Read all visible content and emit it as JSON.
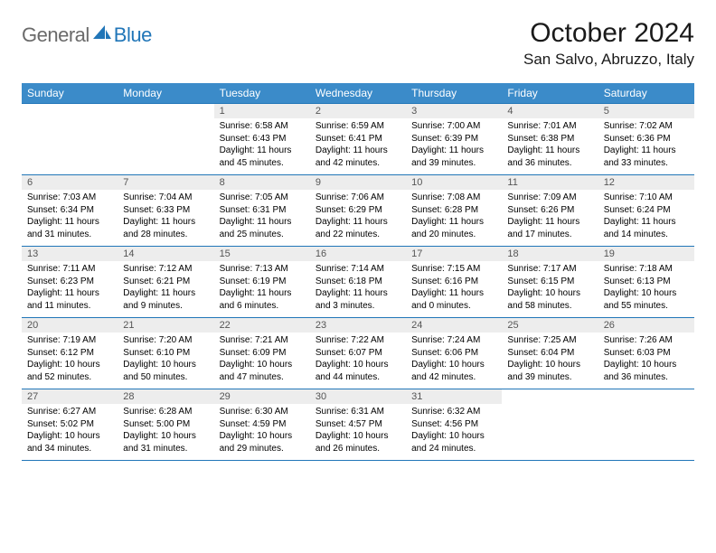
{
  "brand": {
    "general": "General",
    "blue": "Blue"
  },
  "title": "October 2024",
  "location": "San Salvo, Abruzzo, Italy",
  "colors": {
    "header_bg": "#3b8bc9",
    "border": "#2176b8",
    "daynum_bg": "#ededed",
    "text": "#000000",
    "logo_gray": "#6a6a6a",
    "logo_blue": "#2176b8"
  },
  "weekdays": [
    "Sunday",
    "Monday",
    "Tuesday",
    "Wednesday",
    "Thursday",
    "Friday",
    "Saturday"
  ],
  "weeks": [
    [
      {
        "n": "",
        "sr": "",
        "ss": "",
        "dl": ""
      },
      {
        "n": "",
        "sr": "",
        "ss": "",
        "dl": ""
      },
      {
        "n": "1",
        "sr": "Sunrise: 6:58 AM",
        "ss": "Sunset: 6:43 PM",
        "dl": "Daylight: 11 hours and 45 minutes."
      },
      {
        "n": "2",
        "sr": "Sunrise: 6:59 AM",
        "ss": "Sunset: 6:41 PM",
        "dl": "Daylight: 11 hours and 42 minutes."
      },
      {
        "n": "3",
        "sr": "Sunrise: 7:00 AM",
        "ss": "Sunset: 6:39 PM",
        "dl": "Daylight: 11 hours and 39 minutes."
      },
      {
        "n": "4",
        "sr": "Sunrise: 7:01 AM",
        "ss": "Sunset: 6:38 PM",
        "dl": "Daylight: 11 hours and 36 minutes."
      },
      {
        "n": "5",
        "sr": "Sunrise: 7:02 AM",
        "ss": "Sunset: 6:36 PM",
        "dl": "Daylight: 11 hours and 33 minutes."
      }
    ],
    [
      {
        "n": "6",
        "sr": "Sunrise: 7:03 AM",
        "ss": "Sunset: 6:34 PM",
        "dl": "Daylight: 11 hours and 31 minutes."
      },
      {
        "n": "7",
        "sr": "Sunrise: 7:04 AM",
        "ss": "Sunset: 6:33 PM",
        "dl": "Daylight: 11 hours and 28 minutes."
      },
      {
        "n": "8",
        "sr": "Sunrise: 7:05 AM",
        "ss": "Sunset: 6:31 PM",
        "dl": "Daylight: 11 hours and 25 minutes."
      },
      {
        "n": "9",
        "sr": "Sunrise: 7:06 AM",
        "ss": "Sunset: 6:29 PM",
        "dl": "Daylight: 11 hours and 22 minutes."
      },
      {
        "n": "10",
        "sr": "Sunrise: 7:08 AM",
        "ss": "Sunset: 6:28 PM",
        "dl": "Daylight: 11 hours and 20 minutes."
      },
      {
        "n": "11",
        "sr": "Sunrise: 7:09 AM",
        "ss": "Sunset: 6:26 PM",
        "dl": "Daylight: 11 hours and 17 minutes."
      },
      {
        "n": "12",
        "sr": "Sunrise: 7:10 AM",
        "ss": "Sunset: 6:24 PM",
        "dl": "Daylight: 11 hours and 14 minutes."
      }
    ],
    [
      {
        "n": "13",
        "sr": "Sunrise: 7:11 AM",
        "ss": "Sunset: 6:23 PM",
        "dl": "Daylight: 11 hours and 11 minutes."
      },
      {
        "n": "14",
        "sr": "Sunrise: 7:12 AM",
        "ss": "Sunset: 6:21 PM",
        "dl": "Daylight: 11 hours and 9 minutes."
      },
      {
        "n": "15",
        "sr": "Sunrise: 7:13 AM",
        "ss": "Sunset: 6:19 PM",
        "dl": "Daylight: 11 hours and 6 minutes."
      },
      {
        "n": "16",
        "sr": "Sunrise: 7:14 AM",
        "ss": "Sunset: 6:18 PM",
        "dl": "Daylight: 11 hours and 3 minutes."
      },
      {
        "n": "17",
        "sr": "Sunrise: 7:15 AM",
        "ss": "Sunset: 6:16 PM",
        "dl": "Daylight: 11 hours and 0 minutes."
      },
      {
        "n": "18",
        "sr": "Sunrise: 7:17 AM",
        "ss": "Sunset: 6:15 PM",
        "dl": "Daylight: 10 hours and 58 minutes."
      },
      {
        "n": "19",
        "sr": "Sunrise: 7:18 AM",
        "ss": "Sunset: 6:13 PM",
        "dl": "Daylight: 10 hours and 55 minutes."
      }
    ],
    [
      {
        "n": "20",
        "sr": "Sunrise: 7:19 AM",
        "ss": "Sunset: 6:12 PM",
        "dl": "Daylight: 10 hours and 52 minutes."
      },
      {
        "n": "21",
        "sr": "Sunrise: 7:20 AM",
        "ss": "Sunset: 6:10 PM",
        "dl": "Daylight: 10 hours and 50 minutes."
      },
      {
        "n": "22",
        "sr": "Sunrise: 7:21 AM",
        "ss": "Sunset: 6:09 PM",
        "dl": "Daylight: 10 hours and 47 minutes."
      },
      {
        "n": "23",
        "sr": "Sunrise: 7:22 AM",
        "ss": "Sunset: 6:07 PM",
        "dl": "Daylight: 10 hours and 44 minutes."
      },
      {
        "n": "24",
        "sr": "Sunrise: 7:24 AM",
        "ss": "Sunset: 6:06 PM",
        "dl": "Daylight: 10 hours and 42 minutes."
      },
      {
        "n": "25",
        "sr": "Sunrise: 7:25 AM",
        "ss": "Sunset: 6:04 PM",
        "dl": "Daylight: 10 hours and 39 minutes."
      },
      {
        "n": "26",
        "sr": "Sunrise: 7:26 AM",
        "ss": "Sunset: 6:03 PM",
        "dl": "Daylight: 10 hours and 36 minutes."
      }
    ],
    [
      {
        "n": "27",
        "sr": "Sunrise: 6:27 AM",
        "ss": "Sunset: 5:02 PM",
        "dl": "Daylight: 10 hours and 34 minutes."
      },
      {
        "n": "28",
        "sr": "Sunrise: 6:28 AM",
        "ss": "Sunset: 5:00 PM",
        "dl": "Daylight: 10 hours and 31 minutes."
      },
      {
        "n": "29",
        "sr": "Sunrise: 6:30 AM",
        "ss": "Sunset: 4:59 PM",
        "dl": "Daylight: 10 hours and 29 minutes."
      },
      {
        "n": "30",
        "sr": "Sunrise: 6:31 AM",
        "ss": "Sunset: 4:57 PM",
        "dl": "Daylight: 10 hours and 26 minutes."
      },
      {
        "n": "31",
        "sr": "Sunrise: 6:32 AM",
        "ss": "Sunset: 4:56 PM",
        "dl": "Daylight: 10 hours and 24 minutes."
      },
      {
        "n": "",
        "sr": "",
        "ss": "",
        "dl": ""
      },
      {
        "n": "",
        "sr": "",
        "ss": "",
        "dl": ""
      }
    ]
  ]
}
